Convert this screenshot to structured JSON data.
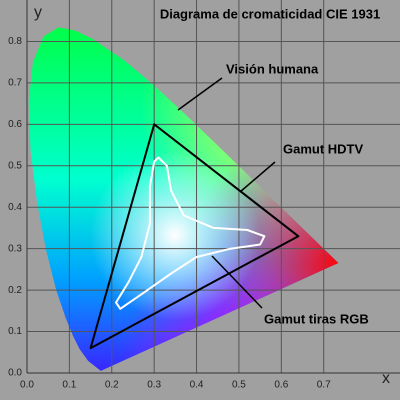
{
  "chart_data": {
    "type": "chromaticity",
    "title": "Diagrama de cromaticidad CIE 1931",
    "xlabel": "x",
    "ylabel": "y",
    "xlim": [
      0,
      0.88
    ],
    "ylim": [
      0,
      0.9
    ],
    "xticks": [
      {
        "value": 0,
        "label": "0.0"
      },
      0.1,
      0.2,
      0.3,
      0.4,
      0.5,
      0.6,
      0.7
    ],
    "yticks": [
      {
        "value": 0,
        "label": "0.0"
      },
      0.1,
      0.2,
      0.3,
      0.4,
      0.5,
      0.6,
      0.7,
      0.8
    ],
    "grid": true,
    "series": [
      {
        "name": "Visión humana",
        "x": [
          0.1741,
          0.144,
          0.1241,
          0.1096,
          0.0913,
          0.0687,
          0.0454,
          0.0235,
          0.0082,
          0.0039,
          0.0139,
          0.0389,
          0.0743,
          0.1142,
          0.1547,
          0.2296,
          0.3016,
          0.3731,
          0.4441,
          0.5125,
          0.5752,
          0.627,
          0.6915,
          0.719,
          0.7347
        ],
        "y": [
          0.005,
          0.0297,
          0.0578,
          0.0868,
          0.1327,
          0.2007,
          0.295,
          0.4127,
          0.5384,
          0.6548,
          0.7502,
          0.812,
          0.8338,
          0.8262,
          0.8059,
          0.7543,
          0.6923,
          0.6245,
          0.5547,
          0.4866,
          0.4242,
          0.3725,
          0.3083,
          0.2809,
          0.2653
        ]
      },
      {
        "name": "Gamut HDTV",
        "color": "#000000",
        "x": [
          0.64,
          0.3,
          0.15
        ],
        "y": [
          0.33,
          0.6,
          0.06
        ]
      },
      {
        "name": "Gamut tiras RGB",
        "color": "#ffffff",
        "x": [
          0.31,
          0.33,
          0.34,
          0.37,
          0.44,
          0.52,
          0.56,
          0.55,
          0.48,
          0.4,
          0.34,
          0.27,
          0.22,
          0.21,
          0.24,
          0.27,
          0.29,
          0.29,
          0.3
        ],
        "y": [
          0.52,
          0.5,
          0.44,
          0.38,
          0.35,
          0.345,
          0.33,
          0.31,
          0.3,
          0.28,
          0.24,
          0.19,
          0.155,
          0.17,
          0.22,
          0.28,
          0.36,
          0.45,
          0.51
        ]
      }
    ]
  }
}
